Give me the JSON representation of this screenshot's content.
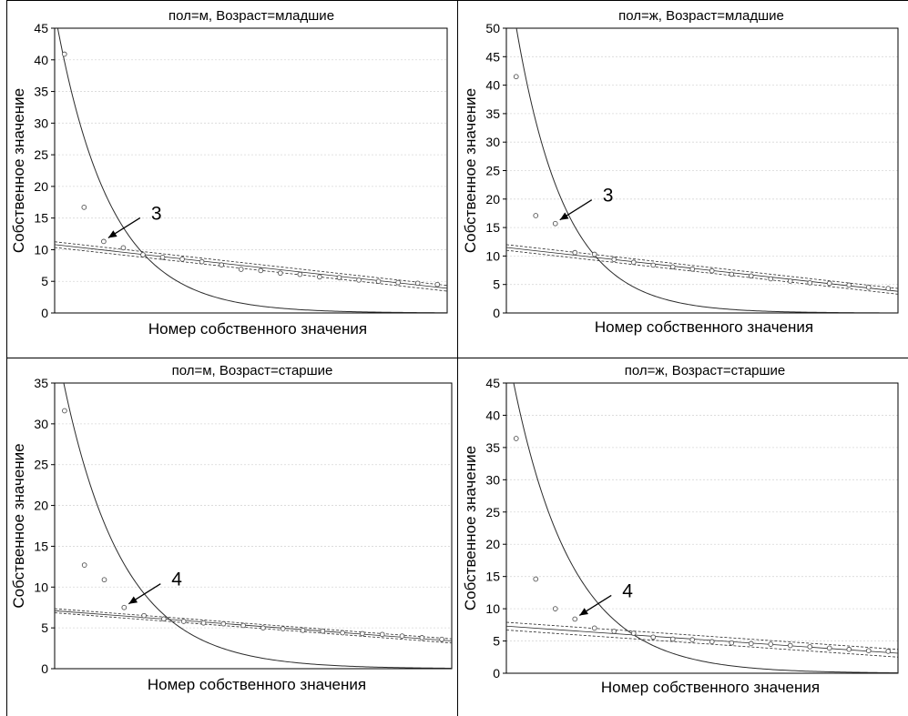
{
  "chart_data": [
    {
      "type": "scatter",
      "title": "пол=м, Возраст=младшие",
      "xlabel": "Номер собственного значения",
      "ylabel": "Собственное значение",
      "ylim": [
        0,
        45
      ],
      "yticks": [
        0,
        5,
        10,
        15,
        20,
        25,
        30,
        35,
        40,
        45
      ],
      "xlim": [
        0.5,
        20.5
      ],
      "grid": true,
      "points": {
        "x": [
          1,
          2,
          3,
          4,
          5,
          6,
          7,
          8,
          9,
          10,
          11,
          12,
          13,
          14,
          15,
          16,
          17,
          18,
          19,
          20
        ],
        "y": [
          40.9,
          16.7,
          11.3,
          10.3,
          9.2,
          8.8,
          8.5,
          8.1,
          7.6,
          6.9,
          6.7,
          6.3,
          6.1,
          5.7,
          5.6,
          5.2,
          5.0,
          4.8,
          4.7,
          4.5
        ]
      },
      "exp_curve": {
        "a": 57,
        "b": 0.36
      },
      "linear_fit": {
        "y_start": 10.8,
        "y_end": 3.9,
        "band": 0.45
      },
      "annotation": {
        "text": "3",
        "point_index": 2
      }
    },
    {
      "type": "scatter",
      "title": "пол=ж, Возраст=младшие",
      "xlabel": "Номер собственного значения",
      "ylabel": "Собственное значение",
      "ylim": [
        0,
        50
      ],
      "yticks": [
        0,
        5,
        10,
        15,
        20,
        25,
        30,
        35,
        40,
        45,
        50
      ],
      "xlim": [
        0.5,
        20.5
      ],
      "grid": true,
      "points": {
        "x": [
          1,
          2,
          3,
          4,
          5,
          6,
          7,
          8,
          9,
          10,
          11,
          12,
          13,
          14,
          15,
          16,
          17,
          18,
          19,
          20
        ],
        "y": [
          41.5,
          17.1,
          15.7,
          10.6,
          10.3,
          9.4,
          8.9,
          8.4,
          8.1,
          7.7,
          7.4,
          6.8,
          6.5,
          6.0,
          5.6,
          5.3,
          5.2,
          4.9,
          4.5,
          4.3
        ]
      },
      "exp_curve": {
        "a": 75,
        "b": 0.4
      },
      "linear_fit": {
        "y_start": 11.5,
        "y_end": 3.8,
        "band": 0.5
      },
      "annotation": {
        "text": "3",
        "point_index": 2
      }
    },
    {
      "type": "scatter",
      "title": "пол=м, Возраст=старшие",
      "xlabel": "Номер собственного значения",
      "ylabel": "Собственное значение",
      "ylim": [
        0,
        35
      ],
      "yticks": [
        0,
        5,
        10,
        15,
        20,
        25,
        30,
        35
      ],
      "xlim": [
        0.5,
        20.5
      ],
      "grid": true,
      "points": {
        "x": [
          1,
          2,
          3,
          4,
          5,
          6,
          7,
          8,
          9,
          10,
          11,
          12,
          13,
          14,
          15,
          16,
          17,
          18,
          19,
          20
        ],
        "y": [
          31.6,
          12.7,
          10.9,
          7.5,
          6.5,
          6.1,
          5.8,
          5.6,
          5.5,
          5.3,
          5.0,
          4.9,
          4.7,
          4.6,
          4.4,
          4.3,
          4.2,
          4.0,
          3.8,
          3.6
        ]
      },
      "exp_curve": {
        "a": 48,
        "b": 0.33
      },
      "linear_fit": {
        "y_start": 7.1,
        "y_end": 3.4,
        "band": 0.25
      },
      "annotation": {
        "text": "4",
        "point_index": 3
      }
    },
    {
      "type": "scatter",
      "title": "пол=ж, Возраст=старшие",
      "xlabel": "Номер собственного значения",
      "ylabel": "Собственное значение",
      "ylim": [
        0,
        45
      ],
      "yticks": [
        0,
        5,
        10,
        15,
        20,
        25,
        30,
        35,
        40,
        45
      ],
      "xlim": [
        0.5,
        20.5
      ],
      "grid": true,
      "points": {
        "x": [
          1,
          2,
          3,
          4,
          5,
          6,
          7,
          8,
          9,
          10,
          11,
          12,
          13,
          14,
          15,
          16,
          17,
          18,
          19,
          20
        ],
        "y": [
          36.4,
          14.6,
          10.0,
          8.4,
          7.0,
          6.5,
          6.2,
          5.6,
          5.3,
          5.2,
          4.9,
          4.7,
          4.6,
          4.5,
          4.3,
          4.1,
          3.9,
          3.7,
          3.5,
          3.4
        ]
      },
      "exp_curve": {
        "a": 60,
        "b": 0.33
      },
      "linear_fit": {
        "y_start": 7.3,
        "y_end": 3.1,
        "band": 0.6
      },
      "annotation": {
        "text": "4",
        "point_index": 3
      }
    }
  ],
  "colors": {
    "curve": "#2b2b2b",
    "points": "#555555",
    "grid": "#d8d8d8",
    "frame": "#000000"
  }
}
